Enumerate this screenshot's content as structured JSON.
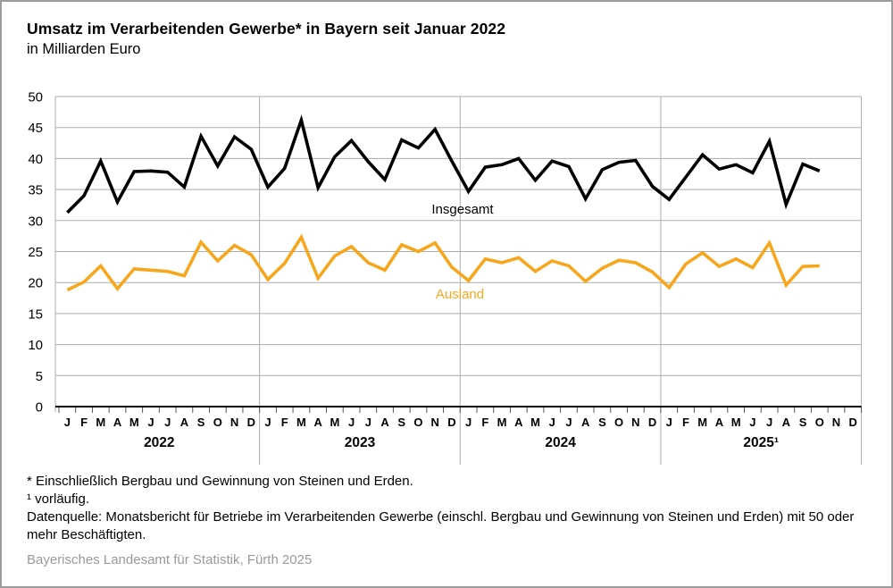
{
  "chart_data": {
    "type": "line",
    "title": "Umsatz im Verarbeitenden Gewerbe* in Bayern seit Januar 2022",
    "subtitle": "in Milliarden Euro",
    "ylim": [
      0,
      50
    ],
    "ytick_step": 5,
    "grid": true,
    "legend_position": "inline",
    "x_month_labels": [
      "J",
      "F",
      "M",
      "A",
      "M",
      "J",
      "J",
      "A",
      "S",
      "O",
      "N",
      "D"
    ],
    "year_labels": [
      "2022",
      "2023",
      "2024",
      "2025¹"
    ],
    "series": [
      {
        "name": "Insgesamt",
        "color": "#000000",
        "values": [
          31.3,
          34.0,
          39.6,
          33.0,
          37.9,
          38.0,
          37.8,
          35.4,
          43.6,
          38.8,
          43.5,
          41.5,
          35.4,
          38.4,
          46.2,
          35.3,
          40.3,
          42.9,
          39.5,
          36.6,
          43.0,
          41.7,
          44.7,
          39.6,
          34.7,
          38.6,
          39.0,
          40.0,
          36.5,
          39.6,
          38.7,
          33.5,
          38.2,
          39.4,
          39.7,
          35.5,
          33.4,
          37.0,
          40.6,
          38.3,
          39.0,
          37.7,
          42.8,
          32.6,
          39.1,
          38.0
        ]
      },
      {
        "name": "Ausland",
        "color": "#F7A71E",
        "values": [
          18.8,
          20.1,
          22.7,
          19.0,
          22.2,
          22.0,
          21.8,
          21.1,
          26.5,
          23.5,
          26.0,
          24.5,
          20.5,
          23.1,
          27.3,
          20.7,
          24.3,
          25.8,
          23.2,
          22.0,
          26.1,
          25.0,
          26.4,
          22.5,
          20.3,
          23.8,
          23.2,
          24.0,
          21.8,
          23.5,
          22.7,
          20.2,
          22.3,
          23.6,
          23.2,
          21.7,
          19.2,
          23.0,
          24.8,
          22.6,
          23.8,
          22.4,
          26.4,
          19.6,
          22.6,
          22.7
        ]
      }
    ]
  },
  "footnotes": {
    "line1": "* Einschließlich Bergbau und Gewinnung von Steinen und Erden.",
    "line2": "¹ vorläufig.",
    "line3": "Datenquelle: Monatsbericht für Betriebe im Verarbeitenden Gewerbe (einschl. Bergbau und Gewinnung von Steinen und Erden) mit 50 oder mehr Beschäftigten."
  },
  "source": "Bayerisches Landesamt für Statistik, Fürth 2025",
  "colors": {
    "accent_orange": "#F7A71E",
    "grid": "#adadad",
    "axis": "#000000",
    "tick": "#555555",
    "source_gray": "#9a9a9a",
    "border_gray": "#9b9b9b"
  }
}
